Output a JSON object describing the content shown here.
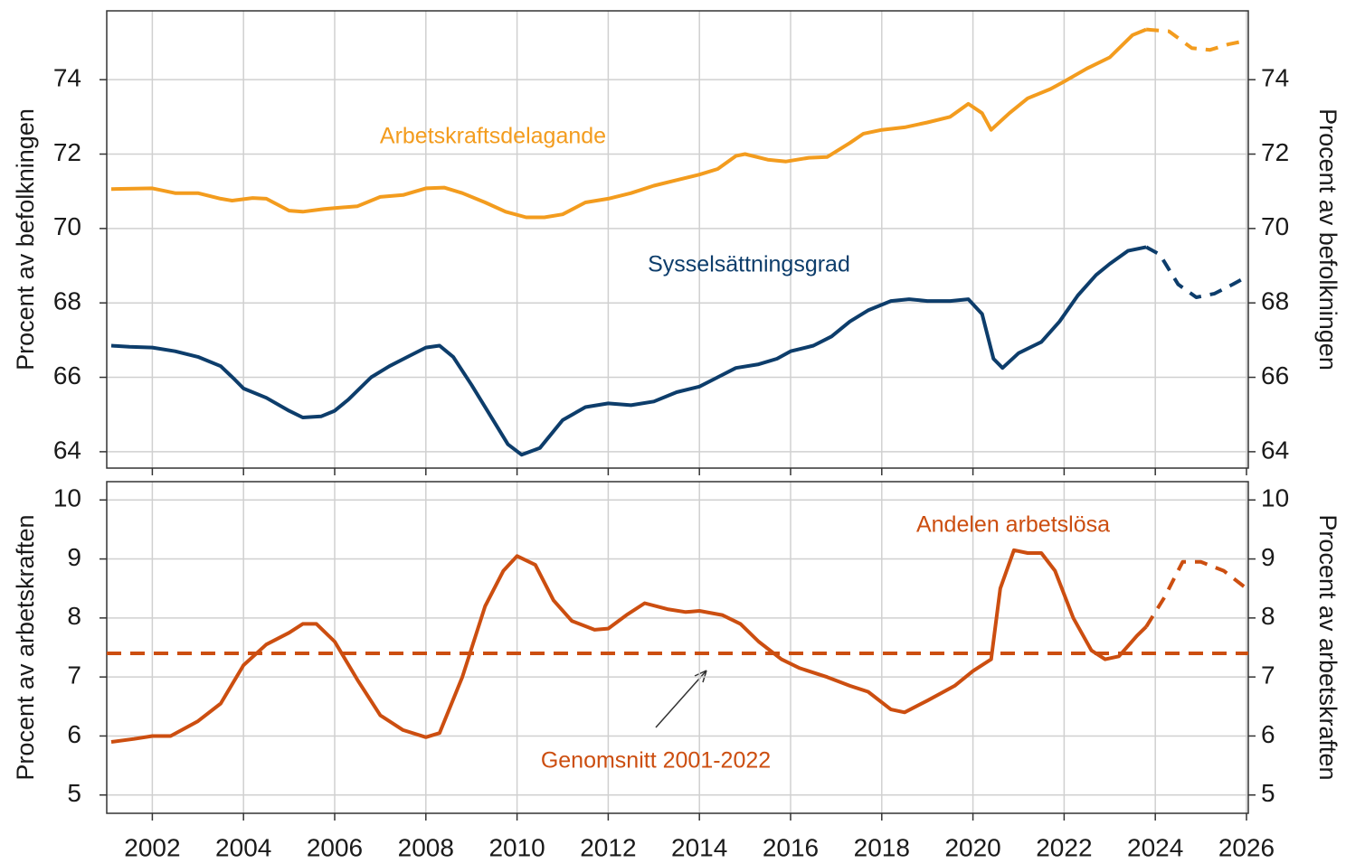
{
  "chart_data": [
    {
      "type": "line",
      "ylabel": "Procent av befolkningen",
      "y2label": "Procent av befolkningen",
      "xlim": [
        2001,
        2026.04
      ],
      "xticks": [
        2002,
        2004,
        2006,
        2008,
        2010,
        2012,
        2014,
        2016,
        2018,
        2020,
        2022,
        2024,
        2026
      ],
      "ylim": [
        63.56,
        75.85
      ],
      "yticks": [
        64,
        66,
        68,
        70,
        72,
        74
      ],
      "y2lim": [
        63.56,
        75.85
      ],
      "y2ticks": [
        64,
        66,
        68,
        70,
        72,
        74
      ],
      "grid": true,
      "series": [
        {
          "name": "Arbetskraftsdelagande",
          "color": "#f39c1e",
          "forecast_from": 2023.8,
          "x": [
            2001.1,
            2002,
            2002.5,
            2003,
            2003.5,
            2003.75,
            2004.2,
            2004.5,
            2005,
            2005.3,
            2005.75,
            2006,
            2006.5,
            2007,
            2007.5,
            2008,
            2008.4,
            2008.8,
            2009.3,
            2009.75,
            2010.2,
            2010.6,
            2011,
            2011.5,
            2012,
            2012.5,
            2013,
            2013.5,
            2014,
            2014.4,
            2014.8,
            2015,
            2015.5,
            2015.9,
            2016.4,
            2016.8,
            2017.3,
            2017.6,
            2018,
            2018.5,
            2019,
            2019.5,
            2019.9,
            2020.2,
            2020.4,
            2020.8,
            2021.2,
            2021.7,
            2022,
            2022.5,
            2023,
            2023.5,
            2023.8,
            2024.3,
            2024.8,
            2025.2,
            2025.6,
            2026
          ],
          "values": [
            71.06,
            71.08,
            70.95,
            70.95,
            70.8,
            70.75,
            70.82,
            70.8,
            70.48,
            70.45,
            70.52,
            70.55,
            70.6,
            70.85,
            70.9,
            71.08,
            71.1,
            70.95,
            70.7,
            70.45,
            70.3,
            70.3,
            70.38,
            70.7,
            70.8,
            70.95,
            71.15,
            71.3,
            71.45,
            71.6,
            71.95,
            72.0,
            71.85,
            71.8,
            71.9,
            71.92,
            72.3,
            72.55,
            72.65,
            72.72,
            72.85,
            73.0,
            73.35,
            73.1,
            72.65,
            73.1,
            73.5,
            73.75,
            73.95,
            74.3,
            74.6,
            75.2,
            75.35,
            75.3,
            74.85,
            74.8,
            74.95,
            75.05
          ]
        },
        {
          "name": "Sysselsättningsgrad",
          "color": "#0d3d6b",
          "forecast_from": 2023.8,
          "x": [
            2001.1,
            2001.5,
            2002,
            2002.5,
            2003,
            2003.5,
            2003.8,
            2004,
            2004.5,
            2005,
            2005.3,
            2005.7,
            2006,
            2006.3,
            2006.8,
            2007.2,
            2007.6,
            2008,
            2008.3,
            2008.6,
            2009,
            2009.5,
            2009.8,
            2010.1,
            2010.5,
            2011,
            2011.5,
            2012,
            2012.5,
            2013,
            2013.5,
            2014,
            2014.4,
            2014.8,
            2015.3,
            2015.7,
            2016,
            2016.5,
            2016.9,
            2017.3,
            2017.7,
            2018.2,
            2018.6,
            2019,
            2019.5,
            2019.9,
            2020.2,
            2020.45,
            2020.65,
            2021,
            2021.5,
            2021.9,
            2022.3,
            2022.7,
            2023,
            2023.4,
            2023.8,
            2024.1,
            2024.5,
            2024.9,
            2025.3,
            2025.7,
            2026
          ],
          "values": [
            66.85,
            66.82,
            66.8,
            66.7,
            66.55,
            66.3,
            65.95,
            65.7,
            65.45,
            65.1,
            64.92,
            64.95,
            65.1,
            65.4,
            66.0,
            66.3,
            66.55,
            66.8,
            66.85,
            66.55,
            65.8,
            64.8,
            64.2,
            63.92,
            64.1,
            64.85,
            65.2,
            65.3,
            65.25,
            65.35,
            65.6,
            65.75,
            66.0,
            66.25,
            66.35,
            66.5,
            66.7,
            66.85,
            67.1,
            67.5,
            67.8,
            68.05,
            68.1,
            68.05,
            68.05,
            68.1,
            67.7,
            66.5,
            66.25,
            66.65,
            66.95,
            67.5,
            68.2,
            68.75,
            69.05,
            69.4,
            69.5,
            69.3,
            68.5,
            68.15,
            68.25,
            68.5,
            68.7
          ]
        }
      ]
    },
    {
      "type": "line",
      "ylabel": "Procent av arbetskraften",
      "y2label": "Procent av arbetskraften",
      "xlim": [
        2001,
        2026.04
      ],
      "xticks": [
        2002,
        2004,
        2006,
        2008,
        2010,
        2012,
        2014,
        2016,
        2018,
        2020,
        2022,
        2024,
        2026
      ],
      "ylim": [
        4.69,
        10.31
      ],
      "yticks": [
        5,
        6,
        7,
        8,
        9,
        10
      ],
      "y2lim": [
        4.69,
        10.31
      ],
      "y2ticks": [
        5,
        6,
        7,
        8,
        9,
        10
      ],
      "grid": true,
      "hlines": [
        {
          "value": 7.4,
          "label": "Genomsnitt 2001-2022",
          "color": "#cc4e10"
        }
      ],
      "series": [
        {
          "name": "Andelen arbetslösa",
          "color": "#cc4e10",
          "forecast_from": 2023.8,
          "x": [
            2001.1,
            2001.6,
            2002,
            2002.4,
            2003,
            2003.5,
            2004,
            2004.5,
            2005,
            2005.3,
            2005.6,
            2006,
            2006.5,
            2007,
            2007.5,
            2008,
            2008.3,
            2008.8,
            2009.3,
            2009.7,
            2010,
            2010.4,
            2010.8,
            2011.2,
            2011.7,
            2012,
            2012.4,
            2012.8,
            2013.3,
            2013.7,
            2014,
            2014.5,
            2014.9,
            2015.3,
            2015.8,
            2016.2,
            2016.8,
            2017.3,
            2017.7,
            2018.2,
            2018.5,
            2019,
            2019.6,
            2020,
            2020.4,
            2020.6,
            2020.9,
            2021.2,
            2021.5,
            2021.8,
            2022.2,
            2022.6,
            2022.9,
            2023.2,
            2023.6,
            2023.8,
            2024.2,
            2024.6,
            2025.0,
            2025.5,
            2026
          ],
          "values": [
            5.9,
            5.95,
            6.0,
            6.0,
            6.25,
            6.55,
            7.2,
            7.55,
            7.75,
            7.9,
            7.9,
            7.6,
            6.95,
            6.35,
            6.1,
            5.98,
            6.05,
            7.0,
            8.2,
            8.8,
            9.05,
            8.9,
            8.3,
            7.95,
            7.8,
            7.82,
            8.05,
            8.25,
            8.15,
            8.1,
            8.12,
            8.05,
            7.9,
            7.6,
            7.3,
            7.15,
            7.0,
            6.85,
            6.75,
            6.45,
            6.4,
            6.6,
            6.85,
            7.1,
            7.3,
            8.5,
            9.15,
            9.1,
            9.1,
            8.8,
            8.0,
            7.45,
            7.3,
            7.35,
            7.7,
            7.85,
            8.35,
            8.95,
            8.95,
            8.8,
            8.5
          ]
        }
      ]
    }
  ]
}
